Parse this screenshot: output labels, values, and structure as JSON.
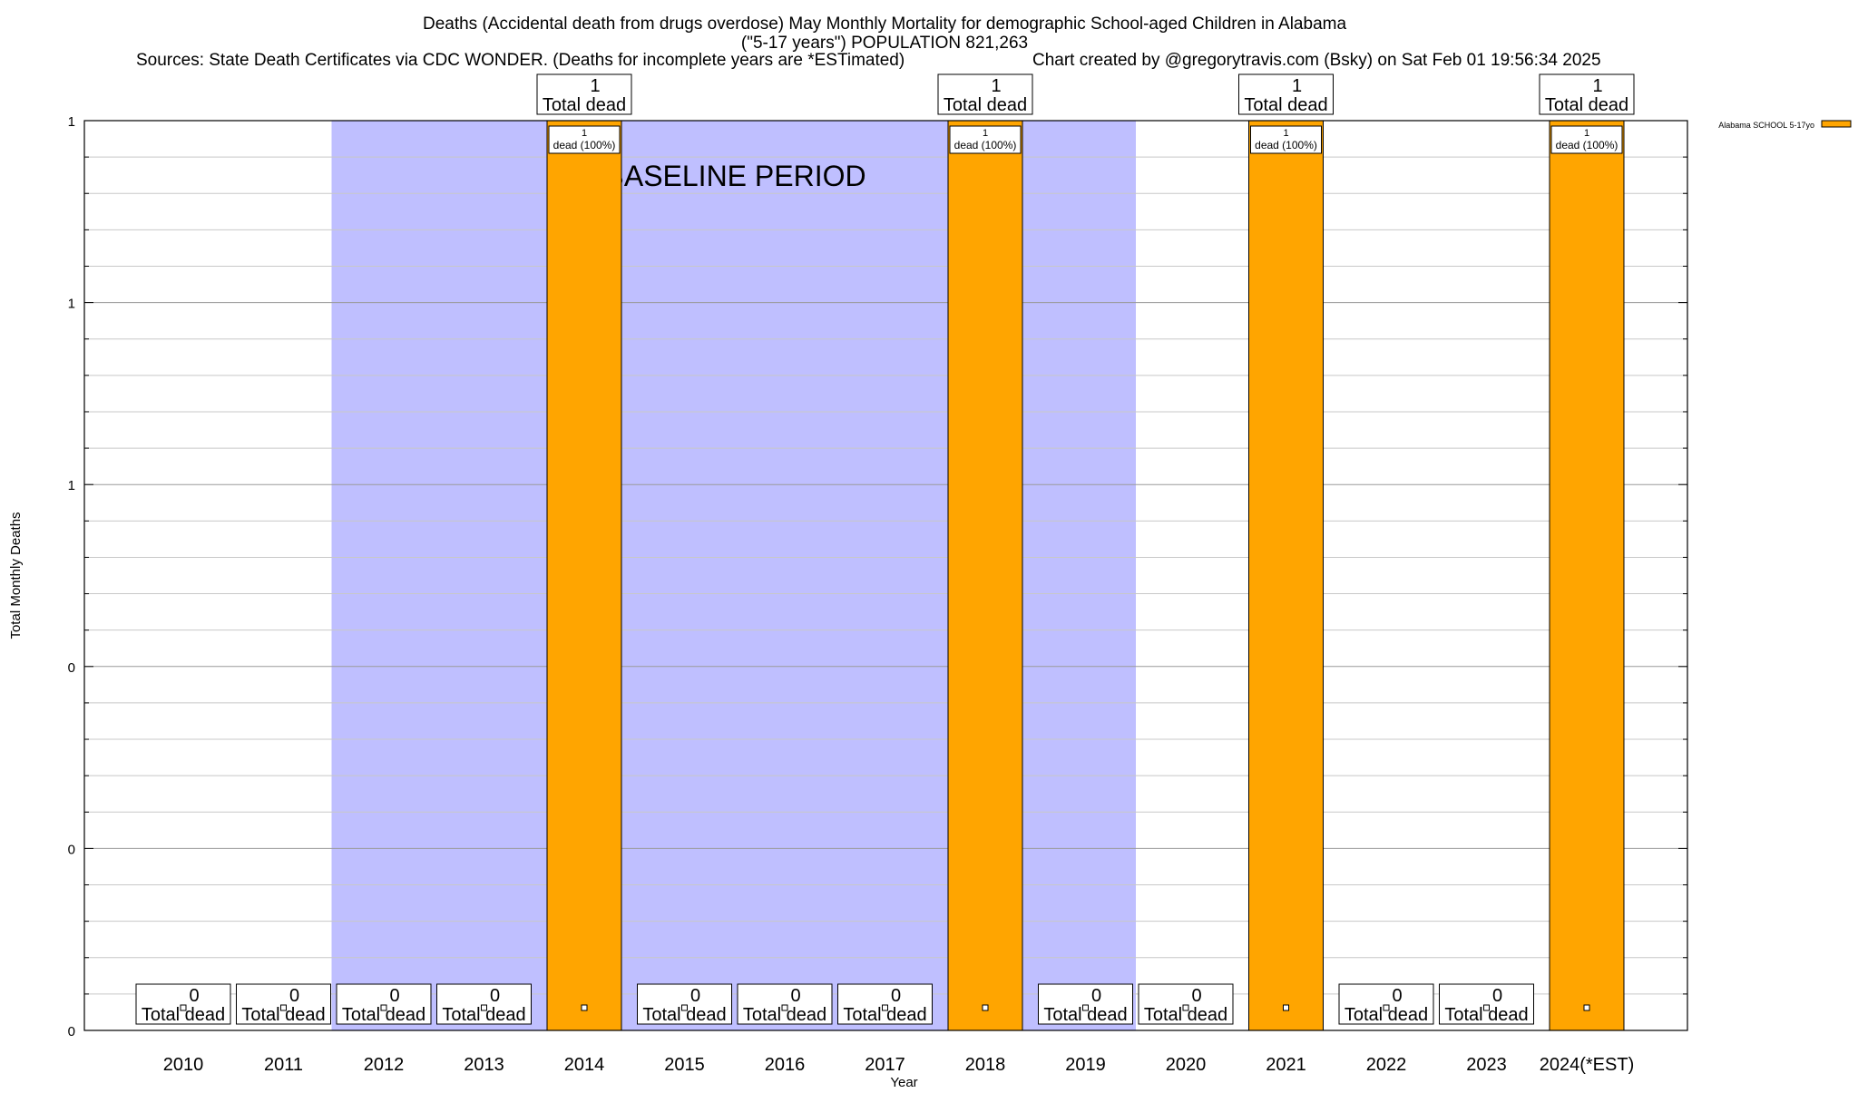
{
  "chart_data": {
    "type": "bar",
    "title_lines": [
      "Deaths (Accidental death from drugs overdose) May Monthly Mortality for demographic School-aged Children in Alabama",
      "(\"5-17 years\") POPULATION 821,263"
    ],
    "sources_text": "Sources: State Death Certificates via CDC WONDER. (Deaths for incomplete years are *ESTimated)",
    "credit_text": "Chart created by @gregorytravis.com (Bsky) on Sat Feb 01 19:56:34 2025",
    "xlabel": "Year",
    "ylabel": "Total Monthly Deaths",
    "ylim": [
      0,
      1
    ],
    "y_tick_values": [
      0,
      0.2,
      0.4,
      0.6,
      0.8,
      1.0
    ],
    "y_tick_labels": [
      "0",
      "0",
      "0",
      "1",
      "1",
      "1"
    ],
    "grid": true,
    "legend_position": "top-right",
    "categories": [
      "2010",
      "2011",
      "2012",
      "2013",
      "2014",
      "2015",
      "2016",
      "2017",
      "2018",
      "2019",
      "2020",
      "2021",
      "2022",
      "2023",
      "2024(*EST)"
    ],
    "series": [
      {
        "name": "Alabama SCHOOL 5-17yo",
        "color": "#FFA500",
        "values": [
          0,
          0,
          0,
          0,
          1,
          0,
          0,
          0,
          1,
          0,
          0,
          1,
          0,
          0,
          1
        ]
      }
    ],
    "total_labels": [
      "0\nTotal dead",
      "0\nTotal dead",
      "0\nTotal dead",
      "0\nTotal dead",
      "1\nTotal dead",
      "0\nTotal dead",
      "0\nTotal dead",
      "0\nTotal dead",
      "1\nTotal dead",
      "0\nTotal dead",
      "0\nTotal dead",
      "1\nTotal dead",
      "0\nTotal dead",
      "0\nTotal dead",
      "1\nTotal dead"
    ],
    "segment_labels": [
      "",
      "",
      "",
      "",
      "1\ndead (100%)",
      "",
      "",
      "",
      "1\ndead (100%)",
      "",
      "",
      "1\ndead (100%)",
      "",
      "",
      "1\ndead (100%)"
    ],
    "shaded_regions": [
      {
        "from": "2012",
        "to": "2019",
        "color": "#BFBFFF"
      }
    ],
    "annotations": [
      {
        "text": "BASELINE PERIOD",
        "anchor": "2015"
      }
    ]
  }
}
